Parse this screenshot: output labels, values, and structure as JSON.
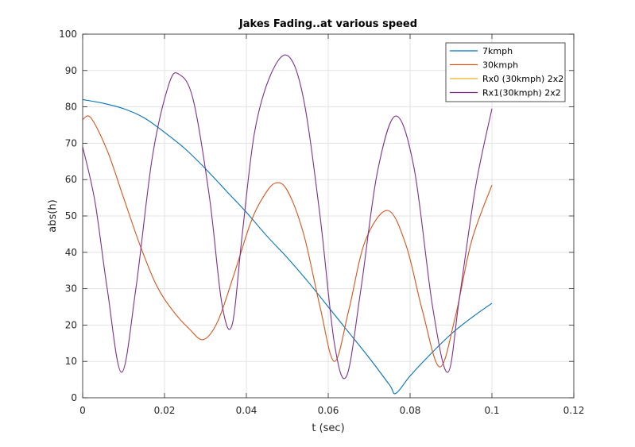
{
  "chart_data": {
    "type": "line",
    "title": "Jakes Fading..at various speed",
    "xlabel": "t (sec)",
    "ylabel": "abs(h)",
    "xlim": [
      0,
      0.12
    ],
    "ylim": [
      0,
      100
    ],
    "xticks": [
      0,
      0.02,
      0.04,
      0.06,
      0.08,
      0.1,
      0.12
    ],
    "xtick_labels": [
      "0",
      "0.02",
      "0.04",
      "0.06",
      "0.08",
      "0.1",
      "0.12"
    ],
    "yticks": [
      0,
      10,
      20,
      30,
      40,
      50,
      60,
      70,
      80,
      90,
      100
    ],
    "ytick_labels": [
      "0",
      "10",
      "20",
      "30",
      "40",
      "50",
      "60",
      "70",
      "80",
      "90",
      "100"
    ],
    "grid": true,
    "legend_position": "top-right",
    "series": [
      {
        "name": "7kmph",
        "color": "#0072BD",
        "x": [
          0,
          0.005,
          0.01,
          0.015,
          0.02,
          0.025,
          0.03,
          0.035,
          0.04,
          0.045,
          0.05,
          0.055,
          0.06,
          0.065,
          0.07,
          0.075,
          0.0765,
          0.08,
          0.085,
          0.09,
          0.095,
          0.1
        ],
        "values": [
          82,
          81,
          79.5,
          77,
          73,
          68.5,
          63,
          57,
          51,
          44.5,
          38.5,
          32,
          25,
          18,
          11,
          3.5,
          1.2,
          6,
          12,
          17.5,
          22,
          26
        ]
      },
      {
        "name": "30kmph",
        "color": "#D95319",
        "x": [
          0,
          0.002,
          0.006,
          0.01,
          0.014,
          0.018,
          0.022,
          0.026,
          0.0295,
          0.033,
          0.037,
          0.041,
          0.044,
          0.047,
          0.05,
          0.054,
          0.058,
          0.0615,
          0.065,
          0.069,
          0.0745,
          0.079,
          0.083,
          0.0872,
          0.091,
          0.095,
          0.1
        ],
        "values": [
          76.5,
          77,
          68,
          55,
          42,
          31,
          24,
          19,
          16,
          21,
          34,
          48,
          55,
          59,
          57,
          45,
          25,
          10,
          24,
          43,
          51.5,
          42,
          24,
          8.5,
          22,
          43,
          58.5
        ]
      },
      {
        "name": "Rx0 (30kmph) 2x2",
        "color": "#EDB120",
        "x": [],
        "values": []
      },
      {
        "name": "Rx1(30kmph) 2x2",
        "color": "#7E2F8E",
        "x": [
          0,
          0.003,
          0.006,
          0.0095,
          0.013,
          0.017,
          0.021,
          0.0235,
          0.027,
          0.031,
          0.034,
          0.0365,
          0.039,
          0.042,
          0.046,
          0.0502,
          0.054,
          0.058,
          0.0615,
          0.0645,
          0.068,
          0.072,
          0.0765,
          0.081,
          0.0855,
          0.0892,
          0.092,
          0.096,
          0.1
        ],
        "values": [
          69,
          54,
          30,
          7,
          30,
          66,
          86,
          89,
          82,
          55,
          26,
          20,
          45,
          73,
          89,
          94,
          82,
          50,
          15,
          6,
          30,
          62,
          77.5,
          63,
          25,
          7,
          27,
          58,
          79.5
        ]
      }
    ]
  }
}
